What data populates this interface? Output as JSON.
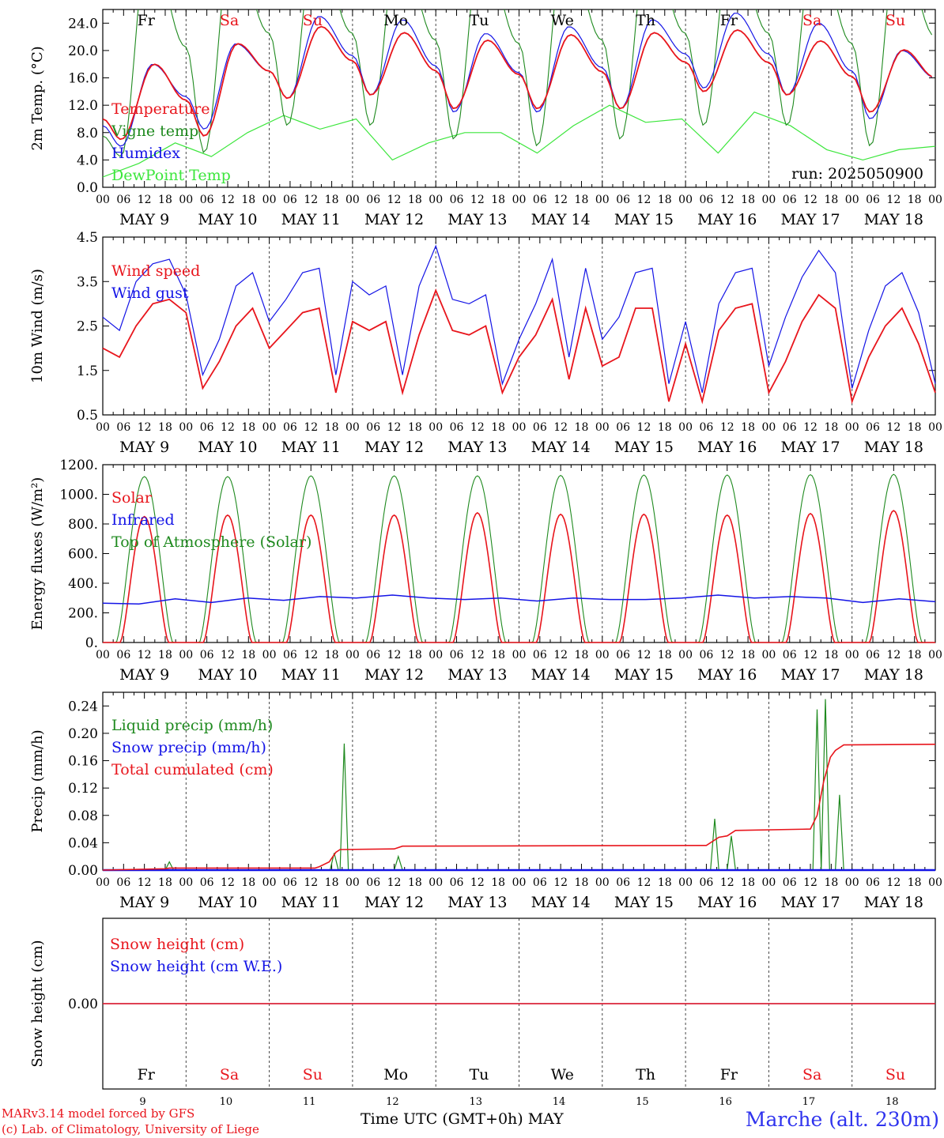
{
  "colors": {
    "red": "#e8151c",
    "blue": "#1414e6",
    "green": "#1f8a1f",
    "lightgreen": "#3ce63c",
    "station": "#2f33ee"
  },
  "days": [
    "Fr",
    "Sa",
    "Su",
    "Mo",
    "Tu",
    "We",
    "Th",
    "Fr",
    "Sa",
    "Su"
  ],
  "weekend_days": [
    1,
    2,
    8,
    9
  ],
  "day_numbers": [
    "9",
    "10",
    "11",
    "12",
    "13",
    "14",
    "15",
    "16",
    "17",
    "18"
  ],
  "date_labels": [
    "MAY  9",
    "MAY 10",
    "MAY 11",
    "MAY 12",
    "MAY 13",
    "MAY 14",
    "MAY 15",
    "MAY 16",
    "MAY 17",
    "MAY 18"
  ],
  "hour_labels": [
    "00",
    "06",
    "12",
    "18"
  ],
  "run_label": "run: 2025050900",
  "footer": {
    "credit_line1": "MARv3.14 model forced by GFS",
    "credit_line2": "(c) Lab. of Climatology, University of Liege",
    "xlabel": "Time UTC (GMT+0h) MAY",
    "station": "Marche (alt. 230m)"
  },
  "chart_data": [
    {
      "type": "line",
      "id": "temp",
      "ylabel": "2m Temp. (°C)",
      "ylim": [
        0,
        26
      ],
      "yticks": [
        "0.0",
        "4.0",
        "8.0",
        "12.0",
        "16.0",
        "20.0",
        "24.0"
      ],
      "grid": "vertical dashed lines at day boundaries",
      "legend_position": "left",
      "series": [
        {
          "name": "Temperature",
          "color": "red",
          "min": [
            7,
            7.5,
            13,
            13.5,
            11.5,
            11.5,
            11.5,
            14,
            13.5,
            11,
            12
          ],
          "max": [
            18,
            21,
            23.5,
            22.6,
            21.5,
            22.3,
            22.6,
            23,
            21.4,
            20.1
          ]
        },
        {
          "name": "Vigne temp",
          "color": "green",
          "min": [
            4.5,
            5,
            9,
            9,
            7,
            6,
            7,
            9,
            9,
            6,
            8
          ],
          "max": [
            26,
            26,
            26,
            26,
            26,
            26,
            26,
            26,
            26,
            26
          ]
        },
        {
          "name": "Humidex",
          "color": "blue",
          "min": [
            6,
            8.5,
            13,
            13.5,
            11,
            11,
            11.5,
            14.5,
            13.5,
            10,
            12
          ],
          "max": [
            18,
            21,
            25,
            24.5,
            22.5,
            23.5,
            24.5,
            25.5,
            24,
            20
          ]
        },
        {
          "name": "DewPoint Temp",
          "color": "lightgreen",
          "values": [
            1.5,
            3.5,
            6.5,
            4.5,
            8,
            10.5,
            8.5,
            10,
            4,
            6.5,
            8,
            8,
            5,
            9,
            12,
            9.5,
            10,
            5,
            11,
            9,
            5.5,
            4,
            5.5,
            6
          ]
        }
      ]
    },
    {
      "type": "line",
      "id": "wind",
      "ylabel": "10m Wind (m/s)",
      "ylim": [
        0.5,
        4.5
      ],
      "yticks": [
        "0.5",
        "1.5",
        "2.5",
        "3.5",
        "4.5"
      ],
      "legend_position": "left",
      "series": [
        {
          "name": "Wind speed",
          "color": "red",
          "values": [
            2,
            1.8,
            2.5,
            3,
            3.1,
            2.8,
            1.1,
            1.7,
            2.5,
            2.9,
            2,
            2.4,
            2.8,
            2.9,
            1,
            2.6,
            2.4,
            2.6,
            1,
            2.3,
            3.3,
            2.4,
            2.3,
            2.5,
            1,
            1.8,
            2.3,
            3.1,
            1.3,
            2.9,
            1.6,
            1.8,
            2.9,
            2.9,
            0.8,
            2.1,
            0.8,
            2.4,
            2.9,
            3,
            1,
            1.7,
            2.6,
            3.2,
            2.9,
            0.8,
            1.8,
            2.5,
            2.9,
            2.1,
            1
          ]
        },
        {
          "name": "Wind gust",
          "color": "blue",
          "values": [
            2.7,
            2.4,
            3.5,
            3.9,
            4,
            3.2,
            1.4,
            2.2,
            3.4,
            3.7,
            2.6,
            3.1,
            3.7,
            3.8,
            1.4,
            3.5,
            3.2,
            3.4,
            1.4,
            3.4,
            4.3,
            3.1,
            3,
            3.2,
            1.2,
            2.2,
            3,
            4,
            1.8,
            3.8,
            2.2,
            2.7,
            3.7,
            3.8,
            1.2,
            2.6,
            1,
            3,
            3.7,
            3.8,
            1.6,
            2.7,
            3.6,
            4.2,
            3.7,
            1.1,
            2.4,
            3.4,
            3.7,
            2.8,
            1.2
          ]
        }
      ]
    },
    {
      "type": "line",
      "id": "energy",
      "ylabel": "Energy fluxes (W/m²)",
      "ylim": [
        0,
        1200
      ],
      "yticks": [
        "0.",
        "200.",
        "400.",
        "600.",
        "800.",
        "1000.",
        "1200."
      ],
      "legend_position": "left",
      "series": [
        {
          "name": "Solar",
          "color": "red",
          "daily_peak": [
            850,
            860,
            860,
            860,
            875,
            865,
            865,
            860,
            870,
            890
          ]
        },
        {
          "name": "Infrared",
          "color": "blue",
          "values": [
            265,
            260,
            295,
            270,
            300,
            285,
            310,
            300,
            320,
            300,
            290,
            300,
            280,
            300,
            290,
            290,
            300,
            320,
            300,
            310,
            300,
            270,
            295,
            275
          ]
        },
        {
          "name": "Top of Atmosphere (Solar)",
          "color": "green",
          "daily_peak": [
            1120,
            1120,
            1125,
            1125,
            1125,
            1128,
            1130,
            1130,
            1133,
            1135
          ]
        }
      ]
    },
    {
      "type": "line",
      "id": "precip",
      "ylabel": "Precip (mm/h)",
      "ylim": [
        0,
        0.26
      ],
      "yticks": [
        "0.00",
        "0.04",
        "0.08",
        "0.12",
        "0.16",
        "0.20",
        "0.24"
      ],
      "legend_position": "left",
      "series": [
        {
          "name": "Liquid precip (mm/h)",
          "color": "green",
          "events": [
            {
              "day": 0.8,
              "peak": 0.012
            },
            {
              "day": 2.78,
              "peak": 0.025
            },
            {
              "day": 2.9,
              "peak": 0.185
            },
            {
              "day": 3.55,
              "peak": 0.02
            },
            {
              "day": 7.35,
              "peak": 0.075
            },
            {
              "day": 7.55,
              "peak": 0.05
            },
            {
              "day": 8.58,
              "peak": 0.235
            },
            {
              "day": 8.68,
              "peak": 0.25
            },
            {
              "day": 8.85,
              "peak": 0.11
            }
          ]
        },
        {
          "name": "Snow precip (mm/h)",
          "color": "blue",
          "values": [
            0
          ]
        },
        {
          "name": "Total cumulated (cm)",
          "color": "red",
          "steps": [
            [
              0,
              0
            ],
            [
              0.75,
              0.002
            ],
            [
              0.8,
              0.003
            ],
            [
              2.55,
              0.003
            ],
            [
              2.6,
              0.005
            ],
            [
              2.72,
              0.012
            ],
            [
              2.8,
              0.026
            ],
            [
              2.85,
              0.03
            ],
            [
              3.5,
              0.031
            ],
            [
              3.6,
              0.035
            ],
            [
              7.25,
              0.036
            ],
            [
              7.4,
              0.048
            ],
            [
              7.5,
              0.05
            ],
            [
              7.6,
              0.058
            ],
            [
              8.5,
              0.06
            ],
            [
              8.58,
              0.08
            ],
            [
              8.66,
              0.13
            ],
            [
              8.74,
              0.165
            ],
            [
              8.8,
              0.175
            ],
            [
              8.9,
              0.183
            ],
            [
              10,
              0.184
            ]
          ]
        }
      ]
    },
    {
      "type": "line",
      "id": "snow",
      "ylabel": "Snow height (cm)",
      "ylim": [
        -1,
        1
      ],
      "yticks": [
        "0.00"
      ],
      "legend_position": "left",
      "series": [
        {
          "name": "Snow height (cm)",
          "color": "red",
          "values": [
            0,
            0
          ]
        },
        {
          "name": "Snow height (cm W.E.)",
          "color": "blue",
          "values": [
            0,
            0
          ]
        }
      ]
    }
  ]
}
